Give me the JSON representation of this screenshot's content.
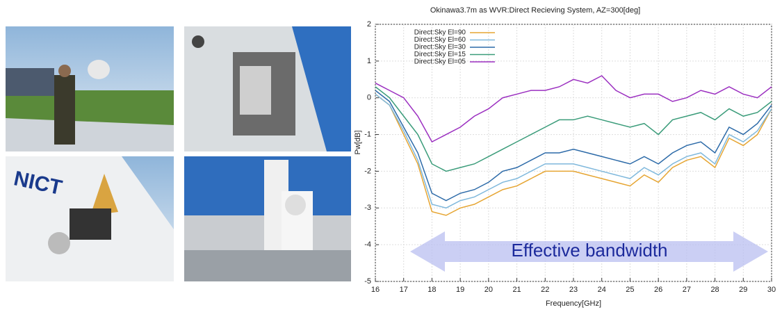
{
  "photos": [
    {
      "text": null
    },
    {
      "text": null
    },
    {
      "text": "NICT"
    },
    {
      "text": null
    }
  ],
  "chart_data": {
    "type": "line",
    "title": "Okinawa3.7m as WVR:Direct Recieving System, AZ=300[deg]",
    "x_label": "Frequency[GHz]",
    "y_label": "Pw[dB]",
    "annotation": "Effective bandwidth",
    "x": [
      16,
      16.5,
      17,
      17.5,
      18,
      18.5,
      19,
      19.5,
      20,
      20.5,
      21,
      21.5,
      22,
      22.5,
      23,
      23.5,
      24,
      24.5,
      25,
      25.5,
      26,
      26.5,
      27,
      27.5,
      28,
      28.5,
      29,
      29.5,
      30
    ],
    "xlim": [
      16,
      30
    ],
    "xticks": [
      16,
      17,
      18,
      19,
      20,
      21,
      22,
      23,
      24,
      25,
      26,
      27,
      28,
      29,
      30
    ],
    "ylim": [
      -5,
      2
    ],
    "yticks": [
      -5,
      -4,
      -3,
      -2,
      -1,
      0,
      1,
      2
    ],
    "grid": true,
    "legend": "top-left",
    "series": [
      {
        "name": "Direct:Sky El=90",
        "color": "#e6a532",
        "values": [
          0.1,
          -0.2,
          -1.0,
          -1.8,
          -3.1,
          -3.2,
          -3.0,
          -2.9,
          -2.7,
          -2.5,
          -2.4,
          -2.2,
          -2.0,
          -2.0,
          -2.0,
          -2.1,
          -2.2,
          -2.3,
          -2.4,
          -2.1,
          -2.3,
          -1.9,
          -1.7,
          -1.6,
          -1.9,
          -1.1,
          -1.3,
          -1.0,
          -0.3
        ]
      },
      {
        "name": "Direct:Sky El=60",
        "color": "#7fb8dc",
        "values": [
          0.1,
          -0.2,
          -0.9,
          -1.7,
          -2.9,
          -3.0,
          -2.8,
          -2.7,
          -2.5,
          -2.3,
          -2.2,
          -2.0,
          -1.8,
          -1.8,
          -1.8,
          -1.9,
          -2.0,
          -2.1,
          -2.2,
          -1.9,
          -2.1,
          -1.8,
          -1.6,
          -1.5,
          -1.8,
          -1.0,
          -1.2,
          -0.9,
          -0.3
        ]
      },
      {
        "name": "Direct:Sky El=30",
        "color": "#2c6aa8",
        "values": [
          0.2,
          -0.1,
          -0.8,
          -1.5,
          -2.6,
          -2.8,
          -2.6,
          -2.5,
          -2.3,
          -2.0,
          -1.9,
          -1.7,
          -1.5,
          -1.5,
          -1.4,
          -1.5,
          -1.6,
          -1.7,
          -1.8,
          -1.6,
          -1.8,
          -1.5,
          -1.3,
          -1.2,
          -1.5,
          -0.8,
          -1.0,
          -0.7,
          -0.2
        ]
      },
      {
        "name": "Direct:Sky El=15",
        "color": "#3b9c7a",
        "values": [
          0.3,
          0.0,
          -0.5,
          -1.0,
          -1.8,
          -2.0,
          -1.9,
          -1.8,
          -1.6,
          -1.4,
          -1.2,
          -1.0,
          -0.8,
          -0.6,
          -0.6,
          -0.5,
          -0.6,
          -0.7,
          -0.8,
          -0.7,
          -1.0,
          -0.6,
          -0.5,
          -0.4,
          -0.6,
          -0.3,
          -0.5,
          -0.4,
          -0.1
        ]
      },
      {
        "name": "Direct:Sky El=05",
        "color": "#9b2fc0",
        "values": [
          0.4,
          0.2,
          0.0,
          -0.5,
          -1.2,
          -1.0,
          -0.8,
          -0.5,
          -0.3,
          0.0,
          0.1,
          0.2,
          0.2,
          0.3,
          0.5,
          0.4,
          0.6,
          0.2,
          0.0,
          0.1,
          0.1,
          -0.1,
          0.0,
          0.2,
          0.1,
          0.3,
          0.1,
          0.0,
          0.3
        ]
      }
    ]
  }
}
